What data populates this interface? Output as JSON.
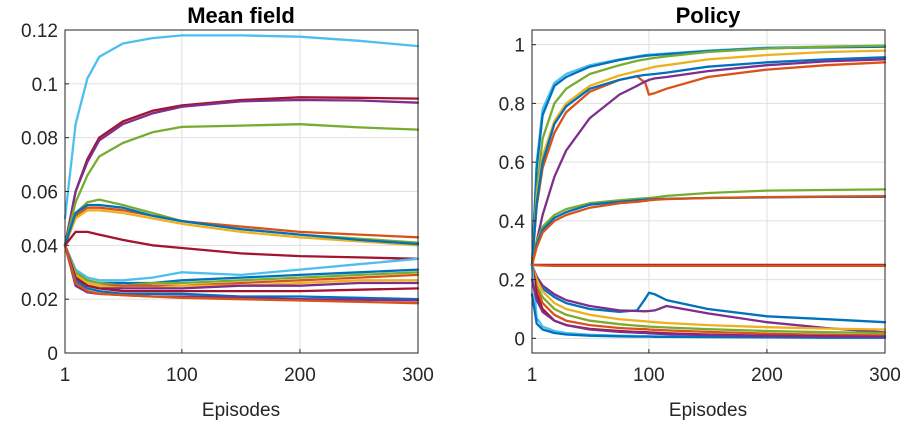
{
  "chart_data": [
    {
      "type": "line",
      "title": "Mean field",
      "xlabel": "Episodes",
      "ylabel": "",
      "xlim": [
        1,
        300
      ],
      "ylim": [
        0,
        0.12
      ],
      "xticks": [
        1,
        100,
        200,
        300
      ],
      "xtick_labels": [
        "1",
        "100",
        "200",
        "300"
      ],
      "yticks": [
        0,
        0.02,
        0.04,
        0.06,
        0.08,
        0.1,
        0.12
      ],
      "ytick_labels": [
        "0",
        "0.02",
        "0.04",
        "0.06",
        "0.08",
        "0.1",
        "0.12"
      ],
      "grid": true,
      "x": [
        1,
        10,
        20,
        30,
        50,
        75,
        100,
        150,
        200,
        250,
        300
      ],
      "series": [
        {
          "color": "#4DBEEE",
          "values": [
            0.05,
            0.085,
            0.102,
            0.11,
            0.115,
            0.117,
            0.118,
            0.118,
            0.1175,
            0.116,
            0.114
          ]
        },
        {
          "color": "#A2142F",
          "values": [
            0.04,
            0.06,
            0.072,
            0.08,
            0.086,
            0.09,
            0.092,
            0.094,
            0.095,
            0.0948,
            0.0945
          ]
        },
        {
          "color": "#7E2F8E",
          "values": [
            0.04,
            0.06,
            0.071,
            0.079,
            0.085,
            0.089,
            0.0915,
            0.0935,
            0.094,
            0.0938,
            0.093
          ]
        },
        {
          "color": "#77AC30",
          "values": [
            0.04,
            0.056,
            0.066,
            0.073,
            0.078,
            0.082,
            0.084,
            0.0845,
            0.085,
            0.0838,
            0.083
          ]
        },
        {
          "color": "#77AC30",
          "values": [
            0.04,
            0.052,
            0.056,
            0.057,
            0.055,
            0.052,
            0.049,
            0.046,
            0.044,
            0.0425,
            0.041
          ]
        },
        {
          "color": "#D95319",
          "values": [
            0.04,
            0.051,
            0.054,
            0.054,
            0.053,
            0.051,
            0.049,
            0.047,
            0.045,
            0.044,
            0.043
          ]
        },
        {
          "color": "#EDB120",
          "values": [
            0.04,
            0.05,
            0.053,
            0.053,
            0.052,
            0.05,
            0.048,
            0.045,
            0.043,
            0.0415,
            0.04
          ]
        },
        {
          "color": "#0072BD",
          "values": [
            0.04,
            0.052,
            0.055,
            0.055,
            0.054,
            0.051,
            0.049,
            0.046,
            0.044,
            0.042,
            0.0405
          ]
        },
        {
          "color": "#A2142F",
          "values": [
            0.04,
            0.045,
            0.045,
            0.044,
            0.042,
            0.04,
            0.039,
            0.037,
            0.036,
            0.0355,
            0.035
          ]
        },
        {
          "color": "#4DBEEE",
          "values": [
            0.04,
            0.031,
            0.028,
            0.027,
            0.027,
            0.028,
            0.03,
            0.029,
            0.031,
            0.033,
            0.035
          ]
        },
        {
          "color": "#0072BD",
          "values": [
            0.04,
            0.03,
            0.027,
            0.026,
            0.026,
            0.026,
            0.027,
            0.028,
            0.029,
            0.03,
            0.031
          ]
        },
        {
          "color": "#77AC30",
          "values": [
            0.04,
            0.03,
            0.027,
            0.026,
            0.025,
            0.026,
            0.026,
            0.027,
            0.028,
            0.029,
            0.03
          ]
        },
        {
          "color": "#D95319",
          "values": [
            0.04,
            0.029,
            0.026,
            0.025,
            0.025,
            0.025,
            0.025,
            0.026,
            0.027,
            0.028,
            0.029
          ]
        },
        {
          "color": "#EDB120",
          "values": [
            0.04,
            0.029,
            0.026,
            0.025,
            0.024,
            0.024,
            0.025,
            0.025,
            0.026,
            0.027,
            0.027
          ]
        },
        {
          "color": "#7E2F8E",
          "values": [
            0.04,
            0.028,
            0.025,
            0.024,
            0.024,
            0.024,
            0.024,
            0.025,
            0.025,
            0.026,
            0.026
          ]
        },
        {
          "color": "#A2142F",
          "values": [
            0.04,
            0.028,
            0.025,
            0.024,
            0.023,
            0.023,
            0.023,
            0.023,
            0.023,
            0.0235,
            0.024
          ]
        },
        {
          "color": "#0072BD",
          "values": [
            0.04,
            0.027,
            0.024,
            0.023,
            0.022,
            0.022,
            0.022,
            0.021,
            0.021,
            0.0205,
            0.02
          ]
        },
        {
          "color": "#7E2F8E",
          "values": [
            0.04,
            0.025,
            0.0225,
            0.022,
            0.0215,
            0.021,
            0.021,
            0.0205,
            0.02,
            0.0198,
            0.0195
          ]
        },
        {
          "color": "#D95319",
          "values": [
            0.04,
            0.026,
            0.023,
            0.022,
            0.0215,
            0.021,
            0.0205,
            0.02,
            0.0195,
            0.019,
            0.0185
          ]
        }
      ]
    },
    {
      "type": "line",
      "title": "Policy",
      "xlabel": "Episodes",
      "ylabel": "",
      "xlim": [
        1,
        300
      ],
      "ylim": [
        -0.05,
        1.05
      ],
      "xticks": [
        1,
        100,
        200,
        300
      ],
      "xtick_labels": [
        "1",
        "100",
        "200",
        "300"
      ],
      "yticks": [
        0,
        0.2,
        0.4,
        0.6,
        0.8,
        1
      ],
      "ytick_labels": [
        "0",
        "0.2",
        "0.4",
        "0.6",
        "0.8",
        "1"
      ],
      "grid": true,
      "x": [
        1,
        5,
        10,
        20,
        30,
        50,
        75,
        90,
        97,
        100,
        105,
        115,
        150,
        200,
        250,
        300
      ],
      "series": [
        {
          "color": "#4DBEEE",
          "values": [
            0.25,
            0.6,
            0.78,
            0.87,
            0.9,
            0.93,
            0.95,
            0.96,
            0.965,
            0.966,
            0.967,
            0.97,
            0.98,
            0.99,
            0.993,
            0.995
          ]
        },
        {
          "color": "#0072BD",
          "values": [
            0.25,
            0.58,
            0.76,
            0.86,
            0.89,
            0.925,
            0.948,
            0.958,
            0.962,
            0.963,
            0.965,
            0.968,
            0.978,
            0.988,
            0.991,
            0.993
          ]
        },
        {
          "color": "#77AC30",
          "values": [
            0.25,
            0.5,
            0.68,
            0.8,
            0.85,
            0.9,
            0.93,
            0.945,
            0.95,
            0.952,
            0.955,
            0.96,
            0.975,
            0.987,
            0.993,
            0.997
          ]
        },
        {
          "color": "#EDB120",
          "values": [
            0.25,
            0.48,
            0.62,
            0.74,
            0.8,
            0.86,
            0.895,
            0.91,
            0.917,
            0.92,
            0.925,
            0.93,
            0.95,
            0.965,
            0.975,
            0.98
          ]
        },
        {
          "color": "#D95319",
          "values": [
            0.25,
            0.45,
            0.58,
            0.7,
            0.77,
            0.84,
            0.88,
            0.892,
            0.87,
            0.83,
            0.835,
            0.85,
            0.89,
            0.915,
            0.93,
            0.94
          ]
        },
        {
          "color": "#0072BD",
          "values": [
            0.25,
            0.46,
            0.6,
            0.73,
            0.79,
            0.85,
            0.88,
            0.893,
            0.897,
            0.898,
            0.9,
            0.905,
            0.925,
            0.94,
            0.95,
            0.957
          ]
        },
        {
          "color": "#7E2F8E",
          "values": [
            0.25,
            0.33,
            0.42,
            0.55,
            0.64,
            0.75,
            0.83,
            0.86,
            0.875,
            0.88,
            0.885,
            0.89,
            0.91,
            0.93,
            0.943,
            0.95
          ]
        },
        {
          "color": "#77AC30",
          "values": [
            0.25,
            0.33,
            0.38,
            0.42,
            0.44,
            0.46,
            0.47,
            0.475,
            0.477,
            0.478,
            0.48,
            0.485,
            0.495,
            0.503,
            0.505,
            0.507
          ]
        },
        {
          "color": "#0072BD",
          "values": [
            0.25,
            0.32,
            0.37,
            0.41,
            0.43,
            0.455,
            0.465,
            0.47,
            0.472,
            0.473,
            0.474,
            0.475,
            0.478,
            0.48,
            0.482,
            0.482
          ]
        },
        {
          "color": "#D95319",
          "values": [
            0.25,
            0.31,
            0.36,
            0.4,
            0.42,
            0.445,
            0.46,
            0.465,
            0.468,
            0.47,
            0.472,
            0.474,
            0.478,
            0.481,
            0.483,
            0.484
          ]
        },
        {
          "color": "#A2142F",
          "values": [
            0.25,
            0.25,
            0.25,
            0.25,
            0.25,
            0.25,
            0.25,
            0.25,
            0.25,
            0.25,
            0.25,
            0.25,
            0.25,
            0.25,
            0.25,
            0.25
          ]
        },
        {
          "color": "#D95319",
          "values": [
            0.25,
            0.249,
            0.248,
            0.247,
            0.247,
            0.247,
            0.247,
            0.247,
            0.247,
            0.247,
            0.247,
            0.247,
            0.247,
            0.247,
            0.247,
            0.247
          ]
        },
        {
          "color": "#0072BD",
          "values": [
            0.25,
            0.2,
            0.17,
            0.14,
            0.12,
            0.1,
            0.09,
            0.095,
            0.135,
            0.155,
            0.15,
            0.13,
            0.1,
            0.075,
            0.065,
            0.055
          ]
        },
        {
          "color": "#7E2F8E",
          "values": [
            0.25,
            0.21,
            0.18,
            0.15,
            0.13,
            0.11,
            0.095,
            0.093,
            0.092,
            0.093,
            0.095,
            0.11,
            0.085,
            0.055,
            0.035,
            0.02
          ]
        },
        {
          "color": "#EDB120",
          "values": [
            0.25,
            0.2,
            0.16,
            0.12,
            0.1,
            0.08,
            0.065,
            0.06,
            0.058,
            0.057,
            0.055,
            0.052,
            0.045,
            0.038,
            0.033,
            0.03
          ]
        },
        {
          "color": "#77AC30",
          "values": [
            0.25,
            0.18,
            0.14,
            0.1,
            0.08,
            0.06,
            0.048,
            0.043,
            0.041,
            0.04,
            0.039,
            0.037,
            0.031,
            0.025,
            0.021,
            0.018
          ]
        },
        {
          "color": "#D95319",
          "values": [
            0.25,
            0.17,
            0.12,
            0.08,
            0.06,
            0.045,
            0.035,
            0.032,
            0.031,
            0.03,
            0.029,
            0.027,
            0.022,
            0.016,
            0.012,
            0.01
          ]
        },
        {
          "color": "#A2142F",
          "values": [
            0.25,
            0.15,
            0.1,
            0.06,
            0.045,
            0.032,
            0.025,
            0.022,
            0.021,
            0.02,
            0.019,
            0.017,
            0.013,
            0.009,
            0.007,
            0.005
          ]
        },
        {
          "color": "#4DBEEE",
          "values": [
            0.25,
            0.07,
            0.04,
            0.025,
            0.018,
            0.012,
            0.009,
            0.008,
            0.0075,
            0.007,
            0.007,
            0.006,
            0.005,
            0.004,
            0.003,
            0.003
          ]
        },
        {
          "color": "#0072BD",
          "values": [
            0.15,
            0.05,
            0.03,
            0.018,
            0.013,
            0.009,
            0.007,
            0.006,
            0.006,
            0.006,
            0.005,
            0.005,
            0.004,
            0.003,
            0.002,
            0.002
          ]
        },
        {
          "color": "#7E2F8E",
          "values": [
            0.2,
            0.13,
            0.09,
            0.06,
            0.045,
            0.03,
            0.022,
            0.019,
            0.018,
            0.017,
            0.016,
            0.014,
            0.011,
            0.008,
            0.006,
            0.005
          ]
        }
      ]
    }
  ]
}
